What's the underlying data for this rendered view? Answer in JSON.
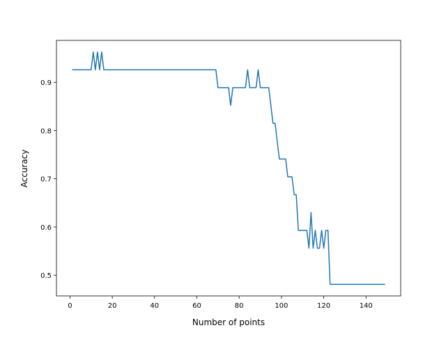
{
  "chart_data": {
    "type": "line",
    "xlabel": "Number of points",
    "ylabel": "Accuracy",
    "color": "#1f77b4",
    "x": [
      1,
      2,
      3,
      4,
      5,
      6,
      7,
      8,
      9,
      10,
      11,
      12,
      13,
      14,
      15,
      16,
      17,
      18,
      19,
      20,
      21,
      22,
      23,
      24,
      25,
      26,
      27,
      28,
      29,
      30,
      31,
      32,
      33,
      34,
      35,
      36,
      37,
      38,
      39,
      40,
      41,
      42,
      43,
      44,
      45,
      46,
      47,
      48,
      49,
      50,
      51,
      52,
      53,
      54,
      55,
      56,
      57,
      58,
      59,
      60,
      61,
      62,
      63,
      64,
      65,
      66,
      67,
      68,
      69,
      70,
      71,
      72,
      73,
      74,
      75,
      76,
      77,
      78,
      79,
      80,
      81,
      82,
      83,
      84,
      85,
      86,
      87,
      88,
      89,
      90,
      91,
      92,
      93,
      94,
      95,
      96,
      97,
      98,
      99,
      100,
      101,
      102,
      103,
      104,
      105,
      106,
      107,
      108,
      109,
      110,
      111,
      112,
      113,
      114,
      115,
      116,
      117,
      118,
      119,
      120,
      121,
      122,
      123,
      124,
      125,
      126,
      127,
      128,
      129,
      130,
      131,
      132,
      133,
      134,
      135,
      136,
      137,
      138,
      139,
      140,
      141,
      142,
      143,
      144,
      145,
      146,
      147,
      148,
      149
    ],
    "values": [
      0.926,
      0.926,
      0.926,
      0.926,
      0.926,
      0.926,
      0.926,
      0.926,
      0.926,
      0.926,
      0.963,
      0.926,
      0.963,
      0.926,
      0.963,
      0.926,
      0.926,
      0.926,
      0.926,
      0.926,
      0.926,
      0.926,
      0.926,
      0.926,
      0.926,
      0.926,
      0.926,
      0.926,
      0.926,
      0.926,
      0.926,
      0.926,
      0.926,
      0.926,
      0.926,
      0.926,
      0.926,
      0.926,
      0.926,
      0.926,
      0.926,
      0.926,
      0.926,
      0.926,
      0.926,
      0.926,
      0.926,
      0.926,
      0.926,
      0.926,
      0.926,
      0.926,
      0.926,
      0.926,
      0.926,
      0.926,
      0.926,
      0.926,
      0.926,
      0.926,
      0.926,
      0.926,
      0.926,
      0.926,
      0.926,
      0.926,
      0.926,
      0.926,
      0.926,
      0.889,
      0.889,
      0.889,
      0.889,
      0.889,
      0.889,
      0.852,
      0.889,
      0.889,
      0.889,
      0.889,
      0.889,
      0.889,
      0.889,
      0.926,
      0.889,
      0.889,
      0.889,
      0.889,
      0.926,
      0.889,
      0.889,
      0.889,
      0.889,
      0.889,
      0.852,
      0.815,
      0.815,
      0.778,
      0.741,
      0.741,
      0.741,
      0.741,
      0.704,
      0.704,
      0.704,
      0.667,
      0.667,
      0.593,
      0.593,
      0.593,
      0.593,
      0.593,
      0.556,
      0.63,
      0.556,
      0.593,
      0.556,
      0.556,
      0.593,
      0.556,
      0.593,
      0.593,
      0.481,
      0.481,
      0.481,
      0.481,
      0.481,
      0.481,
      0.481,
      0.481,
      0.481,
      0.481,
      0.481,
      0.481,
      0.481,
      0.481,
      0.481,
      0.481,
      0.481,
      0.481,
      0.481,
      0.481,
      0.481,
      0.481,
      0.481,
      0.481,
      0.481,
      0.481,
      0.481
    ],
    "xlim": [
      -6.4,
      156.4
    ],
    "xticks": [
      0,
      20,
      40,
      60,
      80,
      100,
      120,
      140
    ],
    "ylim": [
      0.457,
      0.987
    ],
    "yticks": [
      0.5,
      0.6,
      0.7,
      0.8,
      0.9
    ]
  }
}
